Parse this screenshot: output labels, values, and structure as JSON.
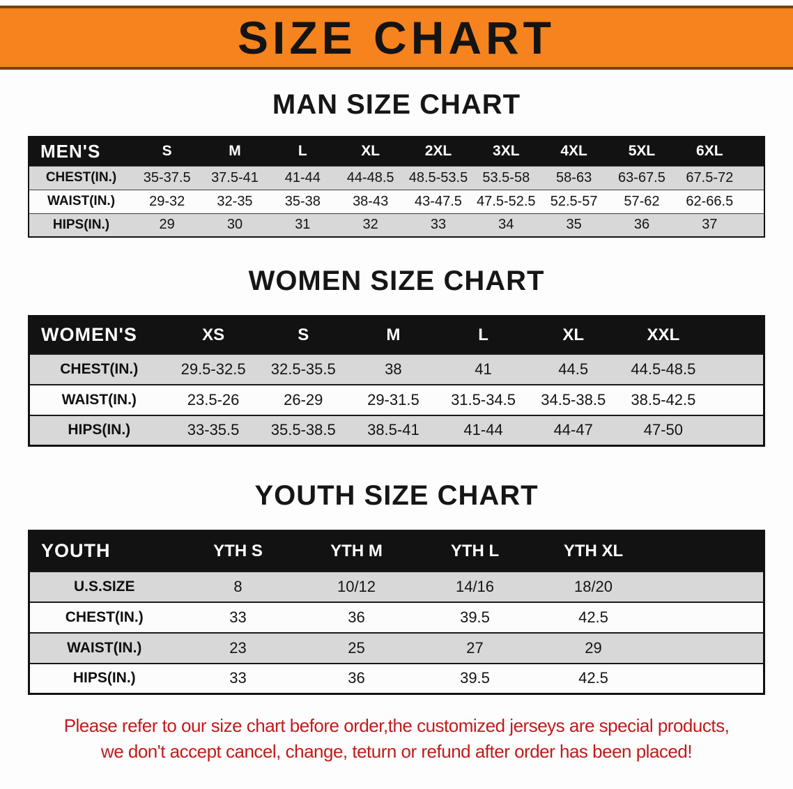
{
  "banner": {
    "title": "SIZE CHART",
    "bg_color": "#F6831D",
    "border_color": "#79430D"
  },
  "colors": {
    "table_header_bg": "#121212",
    "row_stripe": "#d8d8d8",
    "disclaimer_text": "#C11B1B"
  },
  "sections": {
    "men": {
      "heading": "MAN SIZE CHART",
      "table": {
        "header": [
          "MEN'S",
          "S",
          "M",
          "L",
          "XL",
          "2XL",
          "3XL",
          "4XL",
          "5XL",
          "6XL"
        ],
        "rows": [
          [
            "CHEST(IN.)",
            "35-37.5",
            "37.5-41",
            "41-44",
            "44-48.5",
            "48.5-53.5",
            "53.5-58",
            "58-63",
            "63-67.5",
            "67.5-72"
          ],
          [
            "WAIST(IN.)",
            "29-32",
            "32-35",
            "35-38",
            "38-43",
            "43-47.5",
            "47.5-52.5",
            "52.5-57",
            "57-62",
            "62-66.5"
          ],
          [
            "HIPS(IN.)",
            "29",
            "30",
            "31",
            "32",
            "33",
            "34",
            "35",
            "36",
            "37"
          ]
        ]
      }
    },
    "women": {
      "heading": "WOMEN SIZE CHART",
      "table": {
        "header": [
          "WOMEN'S",
          "XS",
          "S",
          "M",
          "L",
          "XL",
          "XXL"
        ],
        "rows": [
          [
            "CHEST(IN.)",
            "29.5-32.5",
            "32.5-35.5",
            "38",
            "41",
            "44.5",
            "44.5-48.5"
          ],
          [
            "WAIST(IN.)",
            "23.5-26",
            "26-29",
            "29-31.5",
            "31.5-34.5",
            "34.5-38.5",
            "38.5-42.5"
          ],
          [
            "HIPS(IN.)",
            "33-35.5",
            "35.5-38.5",
            "38.5-41",
            "41-44",
            "44-47",
            "47-50"
          ]
        ]
      }
    },
    "youth": {
      "heading": "YOUTH SIZE CHART",
      "table": {
        "header": [
          "YOUTH",
          "YTH S",
          "YTH M",
          "YTH L",
          "YTH XL"
        ],
        "rows": [
          [
            "U.S.SIZE",
            "8",
            "10/12",
            "14/16",
            "18/20"
          ],
          [
            "CHEST(IN.)",
            "33",
            "36",
            "39.5",
            "42.5"
          ],
          [
            "WAIST(IN.)",
            "23",
            "25",
            "27",
            "29"
          ],
          [
            "HIPS(IN.)",
            "33",
            "36",
            "39.5",
            "42.5"
          ]
        ]
      }
    }
  },
  "disclaimer": {
    "line1": "Please refer to our size chart before order,the customized jerseys are special products,",
    "line2": "we don't accept cancel, change, teturn or refund after order has been placed!"
  }
}
